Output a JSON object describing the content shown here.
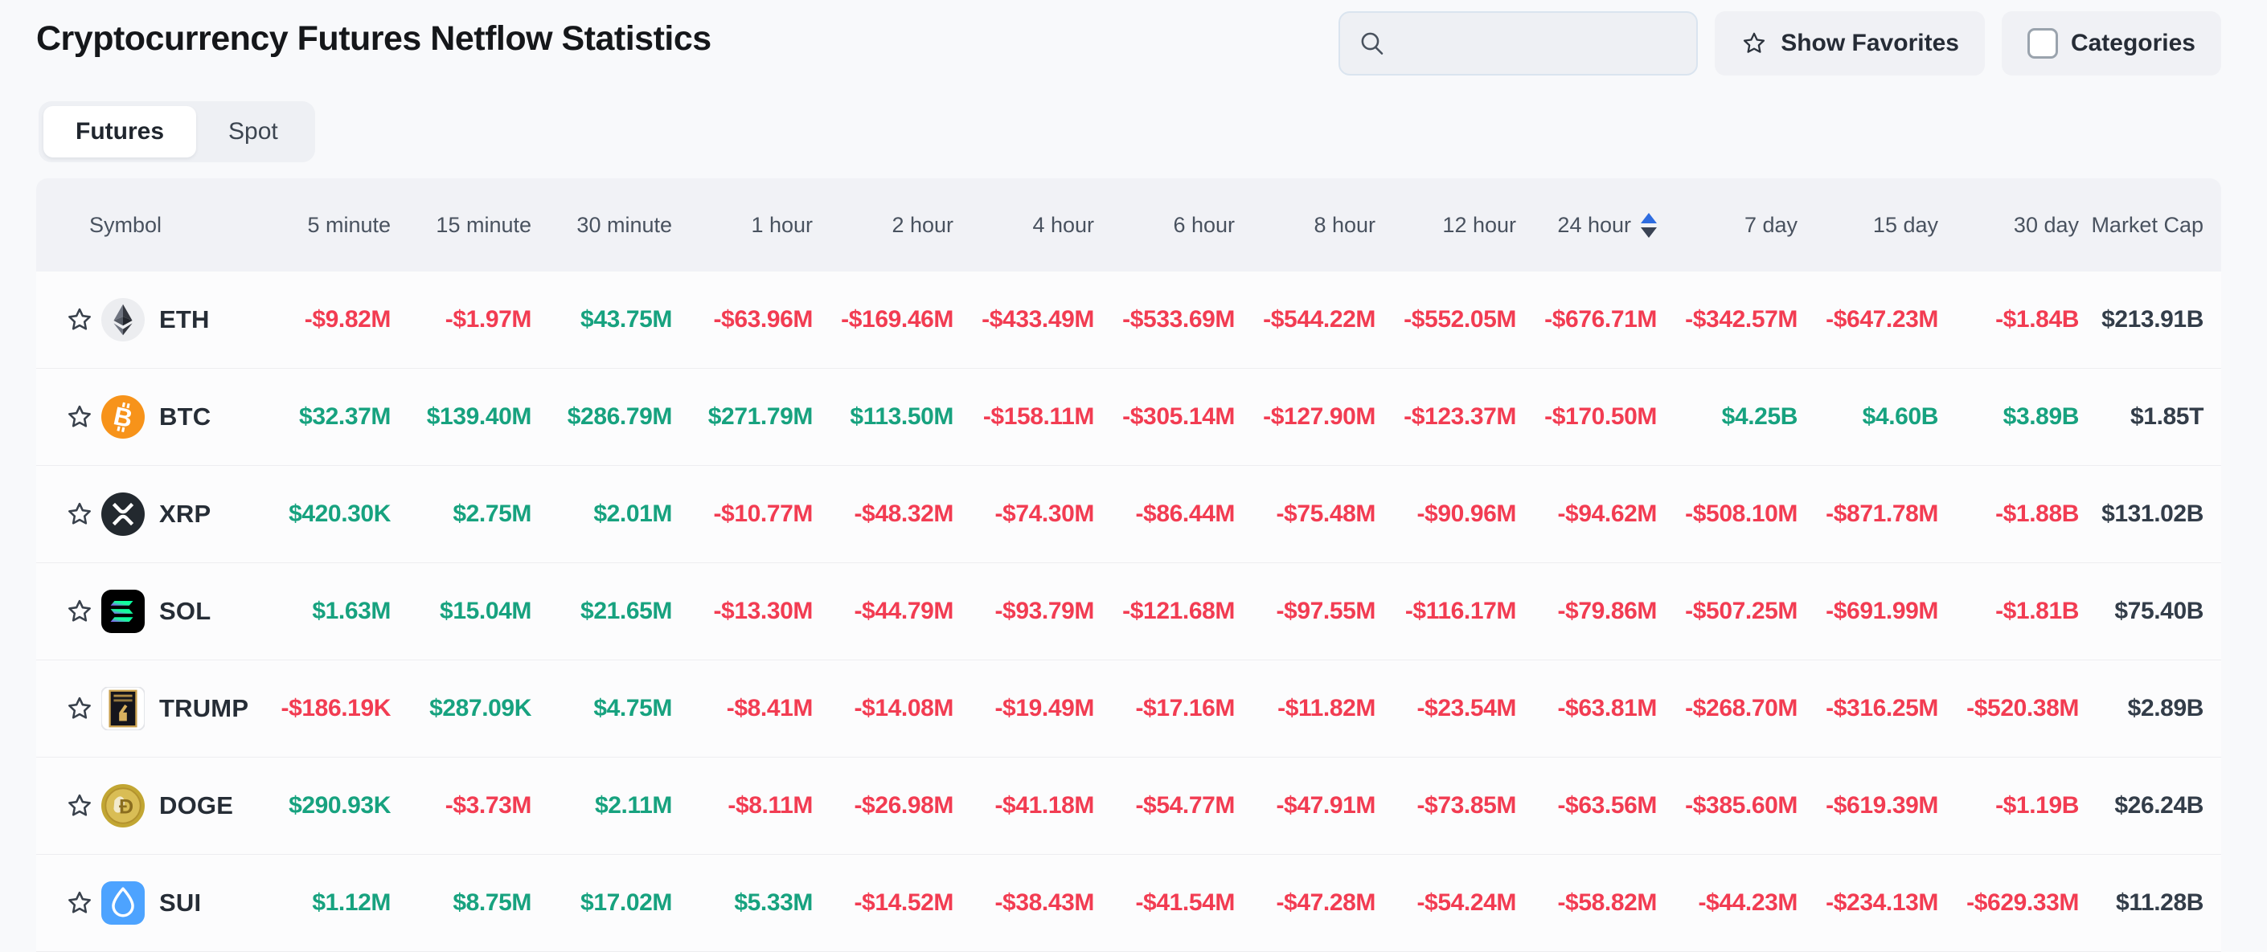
{
  "page": {
    "title": "Cryptocurrency Futures Netflow Statistics"
  },
  "toolbar": {
    "search_value": "",
    "search_icon": "search-icon",
    "show_favorites_label": "Show Favorites",
    "categories_label": "Categories",
    "categories_checked": false
  },
  "tabs": [
    {
      "label": "Futures",
      "active": true
    },
    {
      "label": "Spot",
      "active": false
    }
  ],
  "table": {
    "columns": [
      "Symbol",
      "5 minute",
      "15 minute",
      "30 minute",
      "1 hour",
      "2 hour",
      "4 hour",
      "6 hour",
      "8 hour",
      "12 hour",
      "24 hour",
      "7 day",
      "15 day",
      "30 day",
      "Market Cap"
    ],
    "sorted_column": "24 hour",
    "rows": [
      {
        "symbol": "ETH",
        "icon": "eth-icon",
        "values": [
          "-$9.82M",
          "-$1.97M",
          "$43.75M",
          "-$63.96M",
          "-$169.46M",
          "-$433.49M",
          "-$533.69M",
          "-$544.22M",
          "-$552.05M",
          "-$676.71M",
          "-$342.57M",
          "-$647.23M",
          "-$1.84B"
        ],
        "market_cap": "$213.91B"
      },
      {
        "symbol": "BTC",
        "icon": "btc-icon",
        "values": [
          "$32.37M",
          "$139.40M",
          "$286.79M",
          "$271.79M",
          "$113.50M",
          "-$158.11M",
          "-$305.14M",
          "-$127.90M",
          "-$123.37M",
          "-$170.50M",
          "$4.25B",
          "$4.60B",
          "$3.89B"
        ],
        "market_cap": "$1.85T"
      },
      {
        "symbol": "XRP",
        "icon": "xrp-icon",
        "values": [
          "$420.30K",
          "$2.75M",
          "$2.01M",
          "-$10.77M",
          "-$48.32M",
          "-$74.30M",
          "-$86.44M",
          "-$75.48M",
          "-$90.96M",
          "-$94.62M",
          "-$508.10M",
          "-$871.78M",
          "-$1.88B"
        ],
        "market_cap": "$131.02B"
      },
      {
        "symbol": "SOL",
        "icon": "sol-icon",
        "values": [
          "$1.63M",
          "$15.04M",
          "$21.65M",
          "-$13.30M",
          "-$44.79M",
          "-$93.79M",
          "-$121.68M",
          "-$97.55M",
          "-$116.17M",
          "-$79.86M",
          "-$507.25M",
          "-$691.99M",
          "-$1.81B"
        ],
        "market_cap": "$75.40B"
      },
      {
        "symbol": "TRUMP",
        "icon": "trump-icon",
        "values": [
          "-$186.19K",
          "$287.09K",
          "$4.75M",
          "-$8.41M",
          "-$14.08M",
          "-$19.49M",
          "-$17.16M",
          "-$11.82M",
          "-$23.54M",
          "-$63.81M",
          "-$268.70M",
          "-$316.25M",
          "-$520.38M"
        ],
        "market_cap": "$2.89B"
      },
      {
        "symbol": "DOGE",
        "icon": "doge-icon",
        "values": [
          "$290.93K",
          "-$3.73M",
          "$2.11M",
          "-$8.11M",
          "-$26.98M",
          "-$41.18M",
          "-$54.77M",
          "-$47.91M",
          "-$73.85M",
          "-$63.56M",
          "-$385.60M",
          "-$619.39M",
          "-$1.19B"
        ],
        "market_cap": "$26.24B"
      },
      {
        "symbol": "SUI",
        "icon": "sui-icon",
        "values": [
          "$1.12M",
          "$8.75M",
          "$17.02M",
          "$5.33M",
          "-$14.52M",
          "-$38.43M",
          "-$41.54M",
          "-$47.28M",
          "-$54.24M",
          "-$58.82M",
          "-$44.23M",
          "-$234.13M",
          "-$629.33M"
        ],
        "market_cap": "$11.28B"
      }
    ]
  },
  "colors": {
    "positive": "#17a27f",
    "negative": "#f23c52",
    "neutral": "#333d49",
    "sort_active": "#2e6ce0",
    "header_bg": "#f1f2f6",
    "btc": "#f7931a",
    "sui": "#4da3ff"
  }
}
